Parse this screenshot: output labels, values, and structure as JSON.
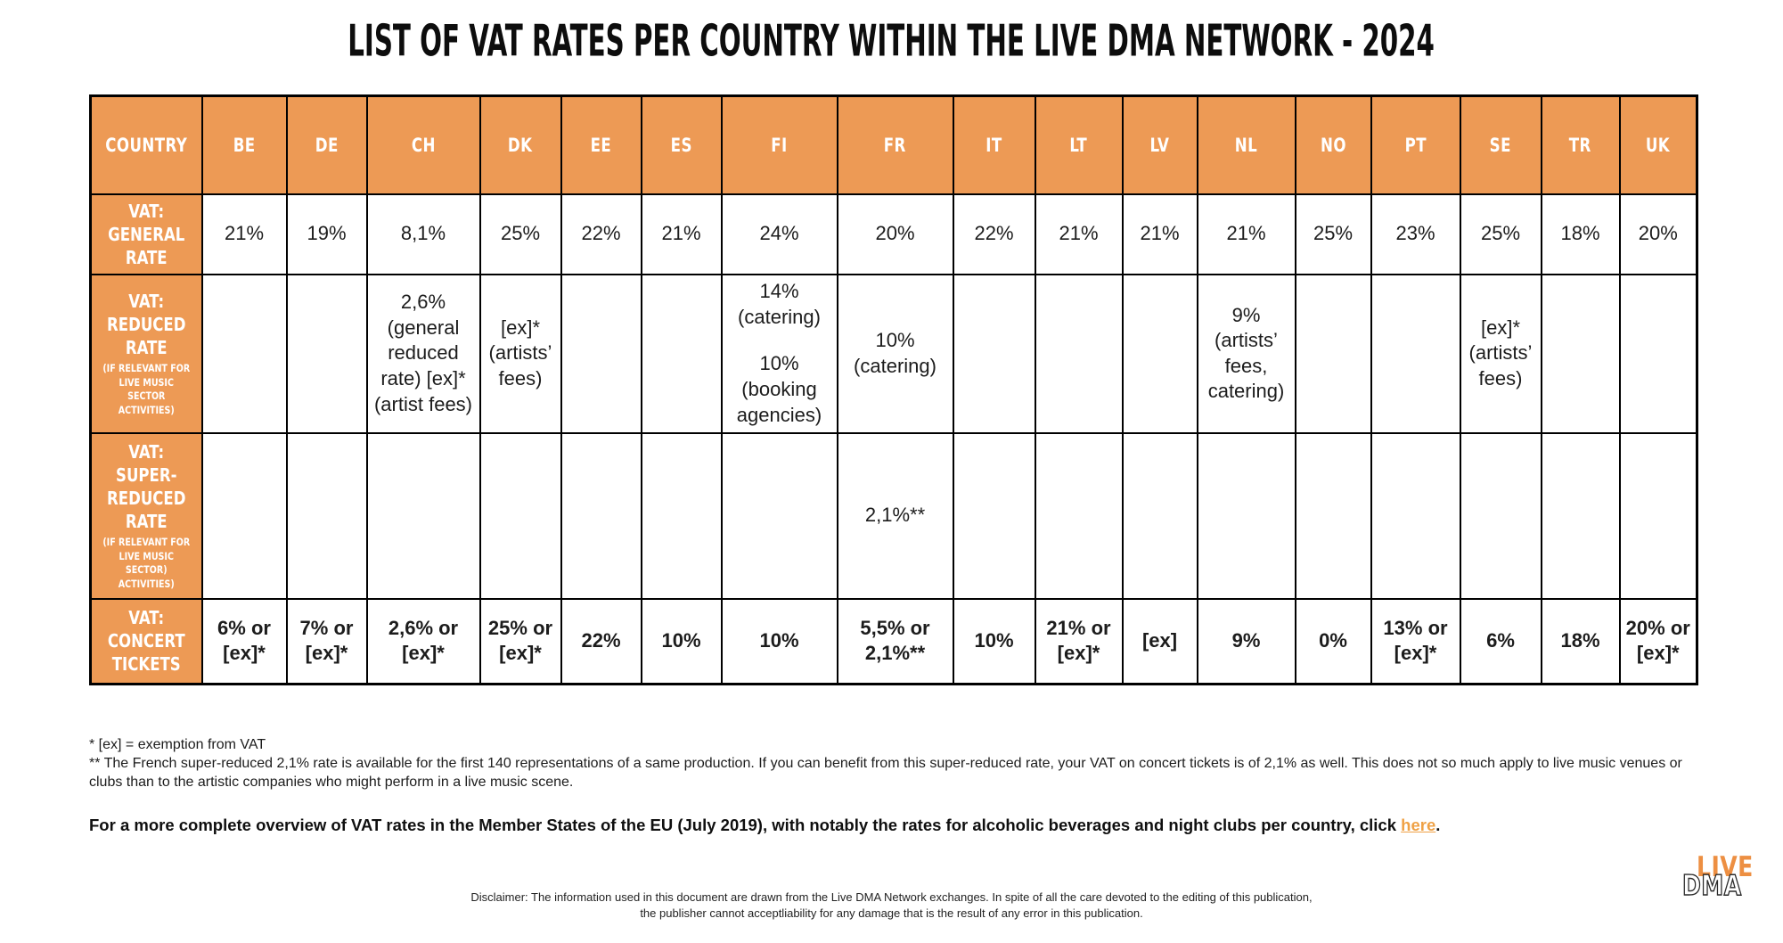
{
  "title": "LIST OF VAT RATES PER COUNTRY WITHIN THE LIVE DMA NETWORK - 2024",
  "table": {
    "corner_label": "COUNTRY",
    "columns": [
      "BE",
      "DE",
      "CH",
      "DK",
      "EE",
      "ES",
      "FI",
      "FR",
      "IT",
      "LT",
      "LV",
      "NL",
      "NO",
      "PT",
      "SE",
      "TR",
      "UK"
    ],
    "rows": [
      {
        "id": "general-rate",
        "label": "VAT: GENERAL RATE",
        "cells": [
          "21%",
          "19%",
          "8,1%",
          "25%",
          "22%",
          "21%",
          "24%",
          "20%",
          "22%",
          "21%",
          "21%",
          "21%",
          "25%",
          "23%",
          "25%",
          "18%",
          "20%"
        ]
      },
      {
        "id": "reduced-rate",
        "label": "VAT: REDUCED RATE",
        "sublabel": "(IF RELEVANT FOR LIVE MUSIC SECTOR ACTIVITIES)",
        "cells": [
          "",
          "",
          "2,6% (general reduced rate) [ex]* (artist fees)",
          "[ex]* (artists’ fees)",
          "",
          "",
          [
            "14% (catering)",
            "10% (booking agencies)"
          ],
          "10% (catering)",
          "",
          "",
          "",
          "9% (artists’ fees, catering)",
          "",
          "",
          "[ex]* (artists’ fees)",
          "",
          ""
        ]
      },
      {
        "id": "super-reduced-rate",
        "label": "VAT: SUPER-REDUCED RATE",
        "sublabel": "(IF RELEVANT FOR LIVE MUSIC SECTOR) ACTIVITIES)",
        "cells": [
          "",
          "",
          "",
          "",
          "",
          "",
          "",
          "2,1%**",
          "",
          "",
          "",
          "",
          "",
          "",
          "",
          "",
          ""
        ]
      },
      {
        "id": "concert-tickets",
        "label": "VAT: CONCERT TICKETS",
        "accent": true,
        "cells": [
          "6% or [ex]*",
          "7% or [ex]*",
          "2,6% or [ex]*",
          "25% or [ex]*",
          "22%",
          "10%",
          "10%",
          "5,5% or 2,1%**",
          "10%",
          "21% or [ex]*",
          "[ex]",
          "9%",
          "0%",
          "13% or [ex]*",
          "6%",
          "18%",
          "20% or [ex]*"
        ]
      }
    ]
  },
  "footnotes": [
    "* [ex] = exemption from VAT",
    "** The French super-reduced 2,1% rate is available for the first 140 representations of a same production. If you can benefit from this super-reduced rate, your VAT on concert tickets is of 2,1% as well. This does not so much apply to live music venues or clubs than to the artistic companies who might perform in a live music scene."
  ],
  "cta": {
    "text_before": "For a more complete overview of VAT rates in the Member States of the EU (July 2019), with notably the rates for alcoholic beverages and night clubs per country, click ",
    "link_text": "here",
    "text_after": "."
  },
  "disclaimer": {
    "line1": "Disclaimer: The information used in this document are drawn from the Live DMA Network exchanges. In spite of all the care devoted to the editing of this publication,",
    "line2": "the publisher cannot acceptliability for any damage that is the result of any error in this publication."
  },
  "logo": {
    "top": "LIVE",
    "bottom": "DMA"
  },
  "colors": {
    "header_orange": "#ED9A55",
    "concert_text_orange": "#E9944C",
    "link_orange": "#EFA145",
    "border_black": "#000000"
  }
}
